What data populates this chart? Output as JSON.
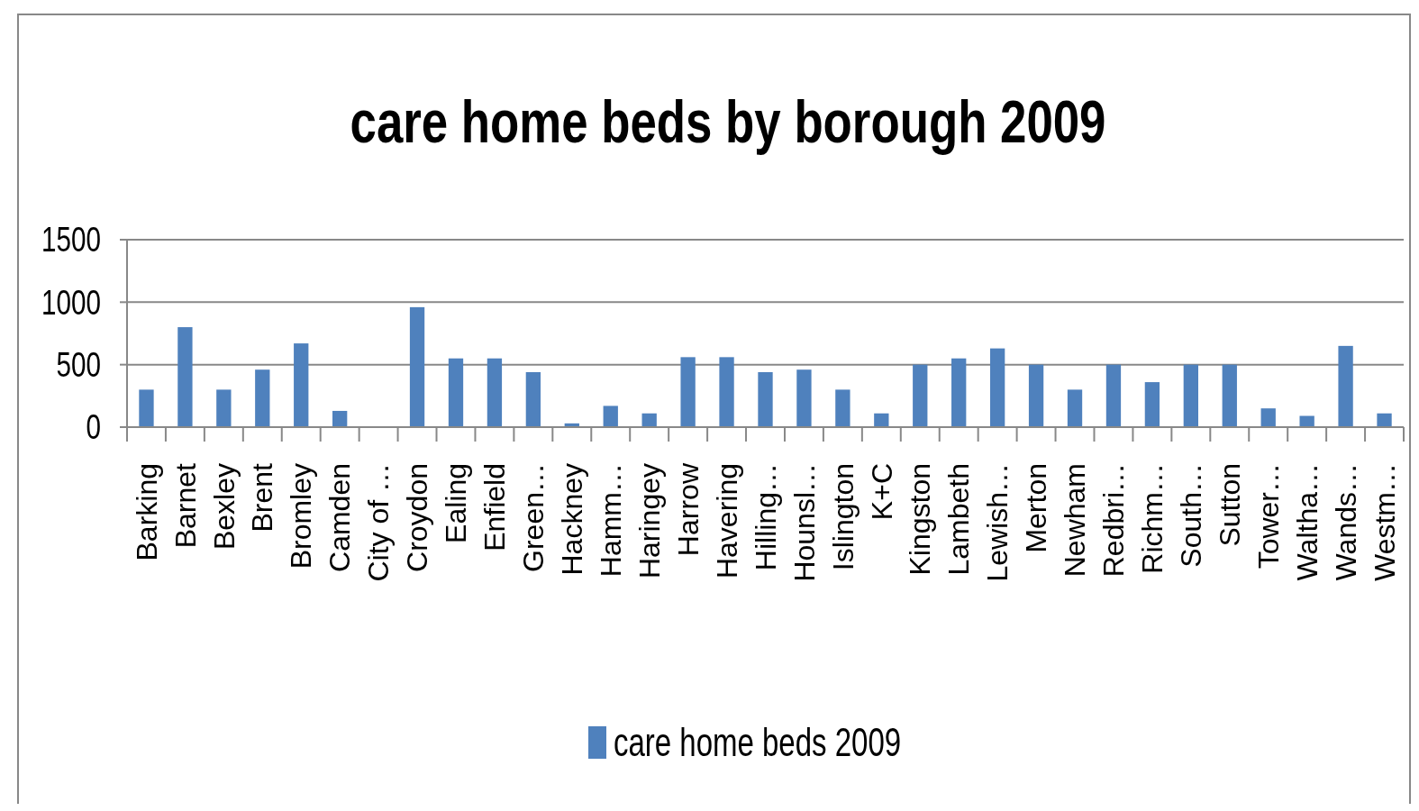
{
  "chart_data": {
    "type": "bar",
    "title": "care home beds by borough 2009",
    "categories": [
      "Barking",
      "Barnet",
      "Bexley",
      "Brent",
      "Bromley",
      "Camden",
      "City of …",
      "Croydon",
      "Ealing",
      "Enfield",
      "Green…",
      "Hackney",
      "Hamm…",
      "Haringey",
      "Harrow",
      "Havering",
      "Hilling…",
      "Hounsl…",
      "Islington",
      "K+C",
      "Kingston",
      "Lambeth",
      "Lewish…",
      "Merton",
      "Newham",
      "Redbri…",
      "Richm…",
      "South…",
      "Sutton",
      "Tower…",
      "Waltha…",
      "Wands…",
      "Westm…"
    ],
    "series": [
      {
        "name": "care home beds 2009",
        "color": "#4f81bd",
        "values": [
          300,
          800,
          300,
          460,
          670,
          130,
          0,
          960,
          550,
          550,
          440,
          30,
          170,
          110,
          560,
          560,
          440,
          460,
          300,
          110,
          500,
          550,
          630,
          500,
          300,
          500,
          360,
          500,
          500,
          150,
          90,
          650,
          110
        ]
      }
    ],
    "ylim": [
      0,
      1500
    ],
    "yticks": [
      0,
      500,
      1000,
      1500
    ],
    "grid": "y",
    "legend": "bottom"
  }
}
